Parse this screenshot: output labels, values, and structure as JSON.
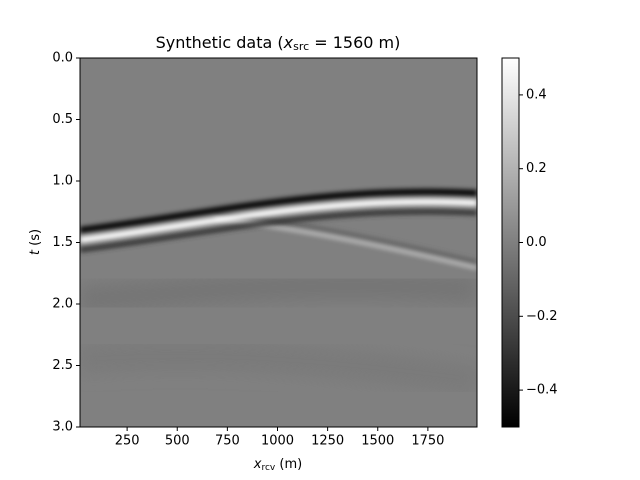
{
  "chart_data": {
    "type": "image",
    "title": [
      "Synthetic data (",
      "x",
      "src",
      " = 1560 m)"
    ],
    "xlabel": [
      "x",
      "rcv",
      " (m)"
    ],
    "ylabel": [
      "t",
      " (s)"
    ],
    "xlim": [
      15,
      1995
    ],
    "xticks": [
      250,
      500,
      750,
      1000,
      1250,
      1500,
      1750
    ],
    "ylim": [
      0,
      3
    ],
    "y_inverted": true,
    "yticks": [
      {
        "value": 0,
        "label": "0.0"
      },
      {
        "value": 0.5,
        "label": "0.5"
      },
      {
        "value": 1,
        "label": "1.0"
      },
      {
        "value": 1.5,
        "label": "1.5"
      },
      {
        "value": 2,
        "label": "2.0"
      },
      {
        "value": 2.5,
        "label": "2.5"
      },
      {
        "value": 3,
        "label": "3.0"
      }
    ],
    "colormap": "gray",
    "clim": [
      -0.5,
      0.5
    ],
    "cticks": [
      {
        "value": -0.4,
        "label": "−0.4"
      },
      {
        "value": -0.2,
        "label": "−0.2"
      },
      {
        "value": 0,
        "label": "0.0"
      },
      0.2,
      0.4
    ]
  }
}
